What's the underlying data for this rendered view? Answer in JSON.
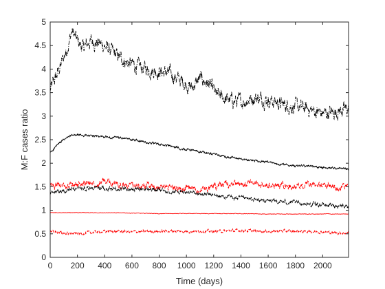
{
  "chart_data": {
    "type": "line",
    "title": "",
    "xlabel": "Time (days)",
    "ylabel": "M:F cases ratio",
    "xlim": [
      0,
      2190
    ],
    "ylim": [
      0,
      5
    ],
    "xticks": [
      0,
      200,
      400,
      600,
      800,
      1000,
      1200,
      1400,
      1600,
      1800,
      2000
    ],
    "yticks": [
      0,
      0.5,
      1,
      1.5,
      2,
      2.5,
      3,
      3.5,
      4,
      4.5,
      5
    ],
    "grid": false,
    "legend": "none",
    "series": [
      {
        "color": "#000000",
        "style": "dash-dot",
        "x": [
          0,
          60,
          120,
          160,
          200,
          240,
          300,
          360,
          420,
          480,
          560,
          640,
          720,
          800,
          880,
          960,
          1040,
          1100,
          1160,
          1220,
          1300,
          1400,
          1500,
          1600,
          1700,
          1800,
          1900,
          2000,
          2100,
          2190
        ],
        "y": [
          3.55,
          3.95,
          4.4,
          4.8,
          4.6,
          4.45,
          4.6,
          4.55,
          4.45,
          4.3,
          4.15,
          4.05,
          4.0,
          3.95,
          3.9,
          3.75,
          3.6,
          3.8,
          3.7,
          3.45,
          3.35,
          3.3,
          3.4,
          3.35,
          3.25,
          3.2,
          3.15,
          3.05,
          3.1,
          3.15
        ]
      },
      {
        "color": "#000000",
        "style": "solid",
        "x": [
          0,
          50,
          100,
          150,
          200,
          300,
          400,
          500,
          600,
          700,
          800,
          900,
          1000,
          1100,
          1200,
          1300,
          1400,
          1500,
          1600,
          1700,
          1800,
          1900,
          2000,
          2100,
          2190
        ],
        "y": [
          2.22,
          2.38,
          2.5,
          2.58,
          2.6,
          2.58,
          2.56,
          2.54,
          2.5,
          2.45,
          2.4,
          2.35,
          2.3,
          2.25,
          2.19,
          2.13,
          2.09,
          2.05,
          2.02,
          1.98,
          1.95,
          1.93,
          1.91,
          1.89,
          1.89
        ]
      },
      {
        "color": "#ff0000",
        "style": "dashed",
        "x": [
          0,
          100,
          200,
          300,
          400,
          500,
          600,
          700,
          800,
          900,
          1000,
          1100,
          1200,
          1300,
          1400,
          1500,
          1600,
          1700,
          1800,
          1900,
          2000,
          2100,
          2190
        ],
        "y": [
          1.55,
          1.52,
          1.55,
          1.58,
          1.6,
          1.55,
          1.5,
          1.52,
          1.5,
          1.48,
          1.45,
          1.45,
          1.5,
          1.55,
          1.57,
          1.55,
          1.52,
          1.53,
          1.5,
          1.53,
          1.52,
          1.5,
          1.5
        ]
      },
      {
        "color": "#000000",
        "style": "dashed",
        "x": [
          0,
          100,
          200,
          300,
          400,
          500,
          600,
          700,
          800,
          900,
          1000,
          1100,
          1200,
          1300,
          1400,
          1500,
          1600,
          1700,
          1800,
          1900,
          2000,
          2100,
          2190
        ],
        "y": [
          1.35,
          1.42,
          1.45,
          1.48,
          1.47,
          1.46,
          1.45,
          1.45,
          1.43,
          1.4,
          1.38,
          1.35,
          1.32,
          1.28,
          1.25,
          1.22,
          1.2,
          1.18,
          1.16,
          1.13,
          1.12,
          1.1,
          1.1
        ]
      },
      {
        "color": "#ff0000",
        "style": "solid",
        "x": [
          0,
          200,
          400,
          600,
          800,
          1000,
          1200,
          1400,
          1600,
          1800,
          2000,
          2190
        ],
        "y": [
          0.95,
          0.95,
          0.95,
          0.94,
          0.93,
          0.93,
          0.93,
          0.93,
          0.92,
          0.92,
          0.92,
          0.92
        ]
      },
      {
        "color": "#ff0000",
        "style": "dashed",
        "x": [
          0,
          100,
          200,
          300,
          400,
          500,
          600,
          700,
          800,
          900,
          1000,
          1100,
          1200,
          1300,
          1400,
          1500,
          1600,
          1700,
          1800,
          1900,
          2000,
          2100,
          2190
        ],
        "y": [
          0.55,
          0.52,
          0.5,
          0.53,
          0.55,
          0.55,
          0.54,
          0.55,
          0.55,
          0.56,
          0.55,
          0.56,
          0.55,
          0.56,
          0.57,
          0.56,
          0.55,
          0.56,
          0.55,
          0.55,
          0.54,
          0.52,
          0.52
        ]
      }
    ]
  }
}
